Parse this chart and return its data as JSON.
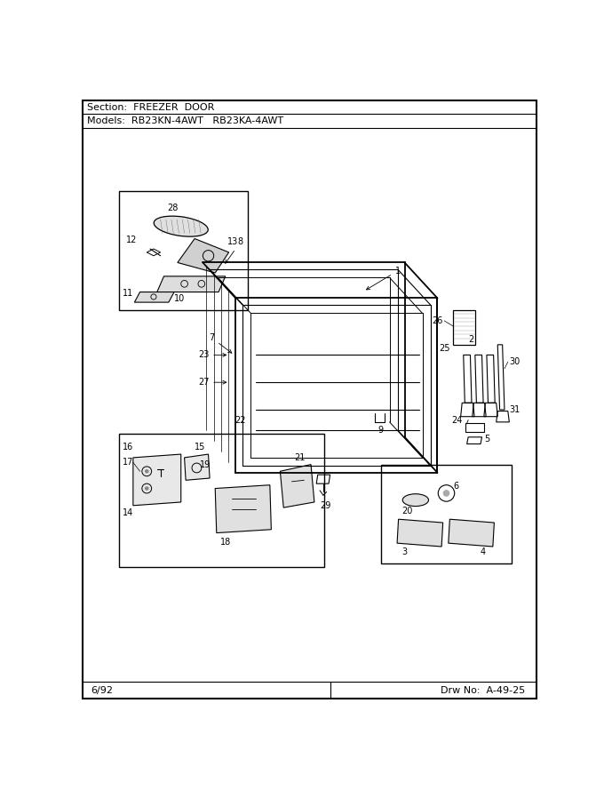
{
  "section_text": "Section:  FREEZER  DOOR",
  "models_text": "Models:  RB23KN-4AWT   RB23KA-4AWT",
  "footer_left": "6/92",
  "footer_right": "Drw No:  A-49-25",
  "bg_color": "#ffffff",
  "lc": "#000000",
  "gray": "#888888",
  "lgray": "#cccccc"
}
